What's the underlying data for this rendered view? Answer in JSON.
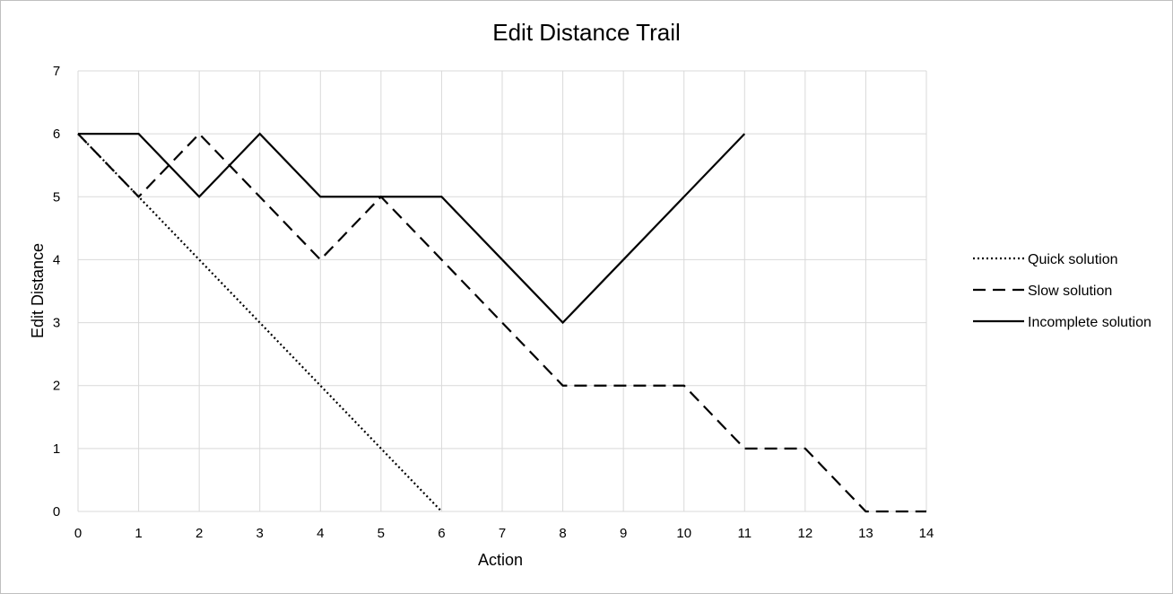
{
  "chart_data": {
    "type": "line",
    "title": "Edit Distance Trail",
    "xlabel": "Action",
    "ylabel": "Edit Distance",
    "x_ticks": [
      "0",
      "1",
      "2",
      "3",
      "4",
      "5",
      "6",
      "7",
      "8",
      "9",
      "10",
      "11",
      "12",
      "13",
      "14"
    ],
    "y_ticks": [
      "0",
      "1",
      "2",
      "3",
      "4",
      "5",
      "6",
      "7"
    ],
    "xlim": [
      0,
      14
    ],
    "ylim": [
      0,
      7
    ],
    "grid": true,
    "legend_position": "right",
    "series": [
      {
        "name": "Quick solution",
        "style": "dotted",
        "color": "#000000",
        "x": [
          0,
          1,
          2,
          3,
          4,
          5,
          6
        ],
        "values": [
          6,
          5,
          4,
          3,
          2,
          1,
          0
        ]
      },
      {
        "name": "Slow solution",
        "style": "dashed",
        "color": "#000000",
        "x": [
          0,
          1,
          2,
          3,
          4,
          5,
          6,
          7,
          8,
          9,
          10,
          11,
          12,
          13,
          14
        ],
        "values": [
          6,
          5,
          6,
          5,
          4,
          5,
          4,
          3,
          2,
          2,
          2,
          1,
          1,
          0,
          0
        ]
      },
      {
        "name": "Incomplete solution",
        "style": "solid",
        "color": "#000000",
        "x": [
          0,
          1,
          2,
          3,
          4,
          5,
          6,
          7,
          8,
          9,
          10,
          11
        ],
        "values": [
          6,
          6,
          5,
          6,
          5,
          5,
          5,
          4,
          3,
          4,
          5,
          6
        ]
      }
    ]
  }
}
